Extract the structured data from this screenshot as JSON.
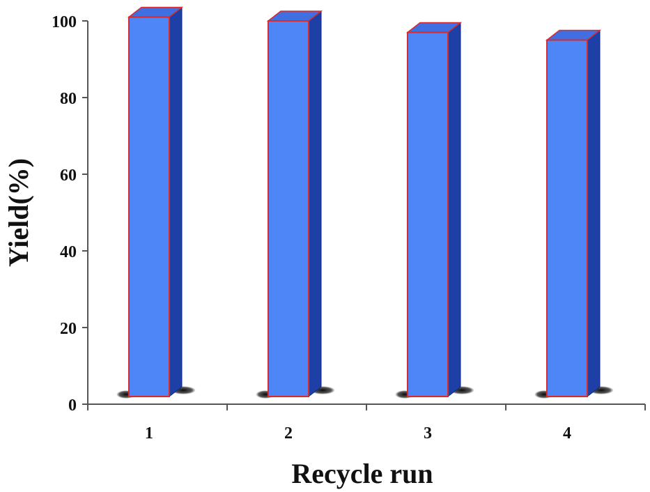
{
  "chart_data": {
    "type": "bar",
    "categories": [
      "1",
      "2",
      "3",
      "4"
    ],
    "values": [
      101,
      100,
      97,
      95
    ],
    "yticks": [
      0,
      20,
      40,
      60,
      80,
      100
    ],
    "ylim": [
      0,
      100
    ],
    "xlabel": "Recycle run",
    "ylabel": "Yield(%)",
    "grid": false,
    "colors": {
      "bar_front": "#4f86f7",
      "bar_side": "#1e3fa6",
      "bar_top": "#3f6fe0",
      "bar_edge": "#d92b2b",
      "axis": "#555555"
    }
  }
}
